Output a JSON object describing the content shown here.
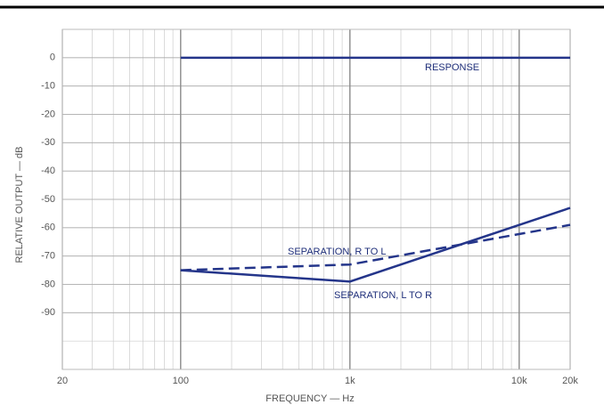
{
  "chart_data": {
    "type": "line",
    "xlabel": "FREQUENCY — Hz",
    "ylabel": "RELATIVE OUTPUT — dB",
    "xscale": "log",
    "grid": true,
    "xlim": [
      20,
      20000
    ],
    "ylim": [
      -110,
      10
    ],
    "xticks": [
      20,
      100,
      {
        "value": 1000,
        "label": "1k"
      },
      {
        "value": 10000,
        "label": "10k"
      },
      {
        "value": 20000,
        "label": "20k"
      }
    ],
    "yticks": [
      0,
      -10,
      -20,
      -30,
      -40,
      -50,
      -60,
      -70,
      -80,
      -90
    ],
    "series": [
      {
        "name": "RESPONSE",
        "color": "#24358a",
        "dash": false,
        "x": [
          100,
          20000
        ],
        "values": [
          0,
          0
        ]
      },
      {
        "name": "SEPARATION, R TO L",
        "color": "#24358a",
        "dash": true,
        "x": [
          100,
          1000,
          20000
        ],
        "values": [
          -75,
          -73,
          -59
        ]
      },
      {
        "name": "SEPARATION, L TO R",
        "color": "#24358a",
        "dash": false,
        "x": [
          100,
          1000,
          20000
        ],
        "values": [
          -75,
          -79,
          -53
        ]
      }
    ]
  }
}
